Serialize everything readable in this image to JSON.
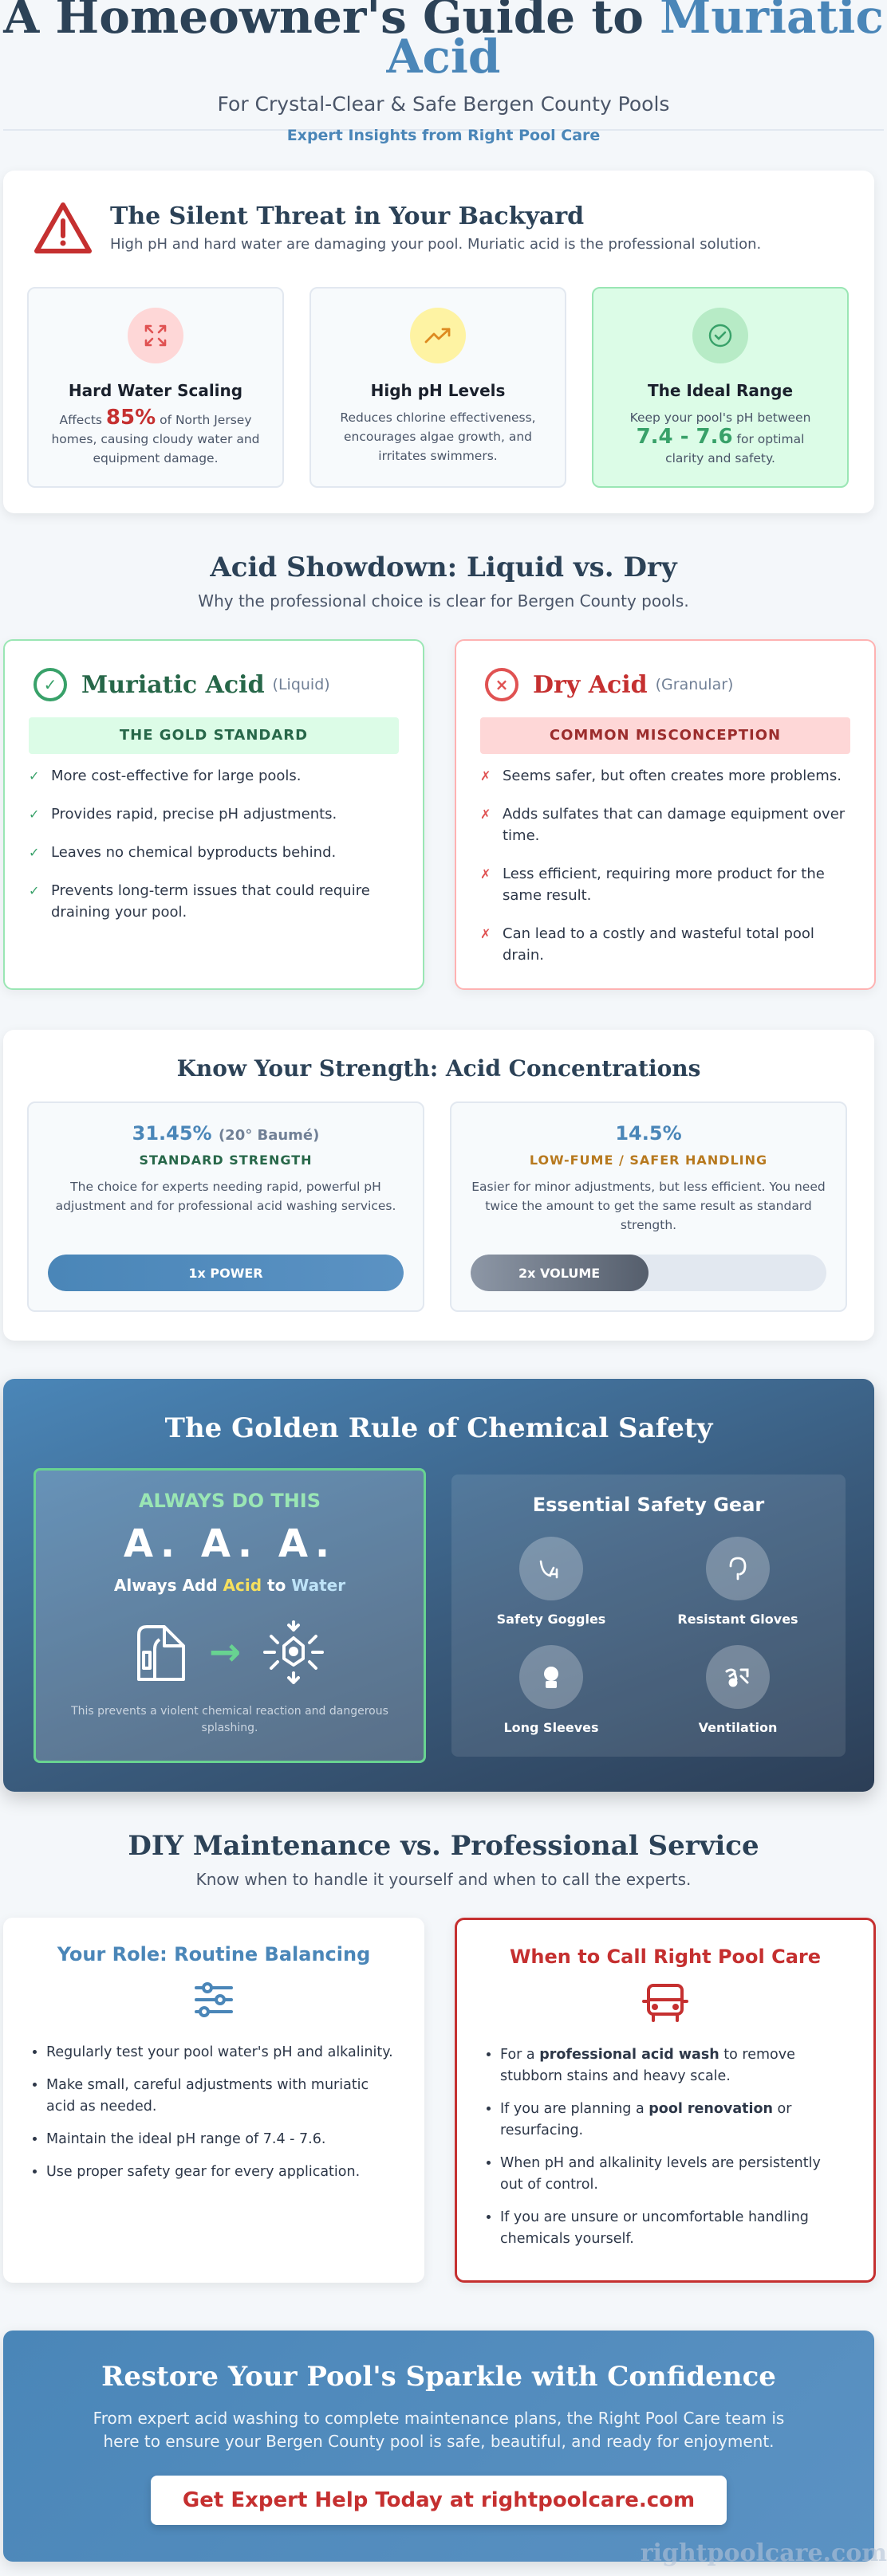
{
  "hero": {
    "title_part1": "A Homeowner's Guide to ",
    "title_part2": "Muriatic Acid",
    "subtitle": "For Crystal-Clear & Safe Bergen County Pools",
    "tagline": "Expert Insights from Right Pool Care"
  },
  "threat": {
    "title": "The Silent Threat in Your Backyard",
    "description": "High pH and hard water are damaging your pool. Muriatic acid is the professional solution.",
    "cards": [
      {
        "title": "Hard Water Scaling",
        "pre": "Affects ",
        "highlight": "85%",
        "post": " of North Jersey homes, causing cloudy water and equipment damage.",
        "icon": "scaling-arrows-icon"
      },
      {
        "title": "High pH Levels",
        "text": "Reduces chlorine effectiveness, encourages algae growth, and irritates swimmers.",
        "icon": "trending-up-icon"
      },
      {
        "title": "The Ideal Range",
        "pre": "Keep your pool's pH between ",
        "highlight": "7.4 - 7.6",
        "post": " for optimal clarity and safety.",
        "icon": "check-circle-icon"
      }
    ]
  },
  "showdown": {
    "title": "Acid Showdown: Liquid vs. Dry",
    "subtitle": "Why the professional choice is clear for Bergen County pools.",
    "liquid": {
      "name": "Muriatic Acid",
      "kind": "(Liquid)",
      "band": "THE GOLD STANDARD",
      "items": [
        "More cost-effective for large pools.",
        "Provides rapid, precise pH adjustments.",
        "Leaves no chemical byproducts behind.",
        "Prevents long-term issues that could require draining your pool."
      ]
    },
    "dry": {
      "name": "Dry Acid",
      "kind": "(Granular)",
      "band": "COMMON MISCONCEPTION",
      "items": [
        "Seems safer, but often creates more problems.",
        "Adds sulfates that can damage equipment over time.",
        "Less efficient, requiring more product for the same result.",
        "Can lead to a costly and wasteful total pool drain."
      ]
    }
  },
  "strength": {
    "title": "Know Your Strength: Acid Concentrations",
    "cards": [
      {
        "pct": "31.45%",
        "deg": "(20° Baumé)",
        "label": "STANDARD STRENGTH",
        "desc": "The choice for experts needing rapid, powerful pH adjustment and for professional acid washing services.",
        "bar_label": "1x POWER",
        "bar_fill": 1.0
      },
      {
        "pct": "14.5%",
        "deg": "",
        "label": "LOW-FUME / SAFER HANDLING",
        "desc": "Easier for minor adjustments, but less efficient. You need twice the amount to get the same result as standard strength.",
        "bar_label": "2x VOLUME",
        "bar_fill": 0.5
      }
    ]
  },
  "golden": {
    "title": "The Golden Rule of Chemical Safety",
    "always": "ALWAYS DO THIS",
    "aaa": "A. A. A.",
    "rule_pre": "Always Add ",
    "rule_acid": "Acid",
    "rule_mid": " to ",
    "rule_water": "Water",
    "note": "This prevents a violent chemical reaction and dangerous splashing.",
    "gear_title": "Essential Safety Gear",
    "gear": [
      {
        "label": "Safety Goggles",
        "icon": "goggles-icon"
      },
      {
        "label": "Resistant Gloves",
        "icon": "gloves-icon"
      },
      {
        "label": "Long Sleeves",
        "icon": "shirt-icon"
      },
      {
        "label": "Ventilation",
        "icon": "fan-icon"
      }
    ]
  },
  "diy": {
    "title": "DIY Maintenance vs. Professional Service",
    "subtitle": "Know when to handle it yourself and when to call the experts.",
    "role_title": "Your Role: Routine Balancing",
    "role_items": [
      "Regularly test your pool water's pH and alkalinity.",
      "Make small, careful adjustments with muriatic acid as needed.",
      "Maintain the ideal pH range of 7.4 - 7.6.",
      "Use proper safety gear for every application."
    ],
    "call_title": "When to Call Right Pool Care",
    "call_items": [
      {
        "pre": "For a ",
        "bold": "professional acid wash",
        "post": " to remove stubborn stains and heavy scale."
      },
      {
        "pre": "If you are planning a ",
        "bold": "pool renovation",
        "post": " or resurfacing."
      },
      {
        "pre": "When pH and alkalinity levels are persistently out of control.",
        "bold": "",
        "post": ""
      },
      {
        "pre": "If you are unsure or uncomfortable handling chemicals yourself.",
        "bold": "",
        "post": ""
      }
    ]
  },
  "cta": {
    "title": "Restore Your Pool's Sparkle with Confidence",
    "text": "From expert acid washing to complete maintenance plans, the Right Pool Care team is here to ensure your Bergen County pool is safe, beautiful, and ready for enjoyment.",
    "button": "Get Expert Help Today at rightpoolcare.com"
  },
  "watermark": "rightpoolcare.com",
  "colors": {
    "navy": "#2c4257",
    "accent": "#4a86b8",
    "green": "#38a169",
    "red": "#c53030"
  }
}
